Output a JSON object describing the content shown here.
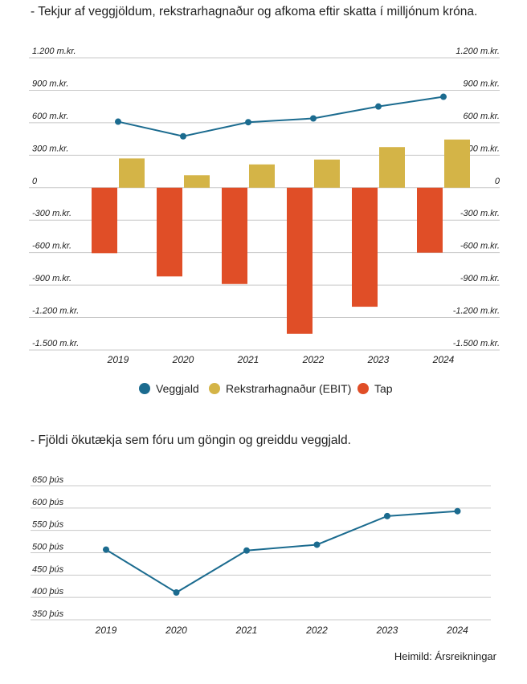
{
  "chart_data": [
    {
      "type": "bar+line",
      "title": "- Tekjur af veggjöldum, rekstrarhagnaður og afkoma eftir skatta í milljónum króna.",
      "categories": [
        "2019",
        "2020",
        "2021",
        "2022",
        "2023",
        "2024"
      ],
      "ylim": [
        -1500,
        1200
      ],
      "yticks": [
        1200,
        900,
        600,
        300,
        0,
        -300,
        -600,
        -900,
        -1200,
        -1500
      ],
      "ytick_labels": [
        "1.200 m.kr.",
        "900 m.kr.",
        "600 m.kr.",
        "300 m.kr.",
        "0",
        "-300 m.kr.",
        "-600 m.kr.",
        "-900 m.kr.",
        "-1.200 m.kr.",
        "-1.500 m.kr."
      ],
      "grid": true,
      "legend_position": "bottom",
      "series": [
        {
          "name": "Veggjald",
          "kind": "line",
          "color": "#1b6b8f",
          "values": [
            610,
            475,
            605,
            640,
            750,
            840
          ]
        },
        {
          "name": "Rekstrarhagnaður (EBIT)",
          "kind": "bar",
          "color": "#d4b447",
          "values": [
            270,
            115,
            215,
            260,
            375,
            445
          ]
        },
        {
          "name": "Tap",
          "kind": "bar",
          "color": "#e04e27",
          "values": [
            -605,
            -820,
            -890,
            -1350,
            -1100,
            -600
          ]
        }
      ]
    },
    {
      "type": "line",
      "title": "- Fjöldi ökutækja sem fóru um göngin og greiddu veggjald.",
      "categories": [
        "2019",
        "2020",
        "2021",
        "2022",
        "2023",
        "2024"
      ],
      "ylim": [
        350,
        650
      ],
      "yticks": [
        650,
        600,
        550,
        500,
        450,
        400,
        350
      ],
      "ytick_labels": [
        "650 þús",
        "600 þús",
        "550 þús",
        "500 þús",
        "450 þús",
        "400 þús",
        "350 þús"
      ],
      "grid": true,
      "series": [
        {
          "name": "",
          "kind": "line",
          "color": "#1b6b8f",
          "values": [
            507,
            411,
            505,
            518,
            582,
            593
          ]
        }
      ]
    }
  ],
  "source": "Heimild: Ársreikningar"
}
